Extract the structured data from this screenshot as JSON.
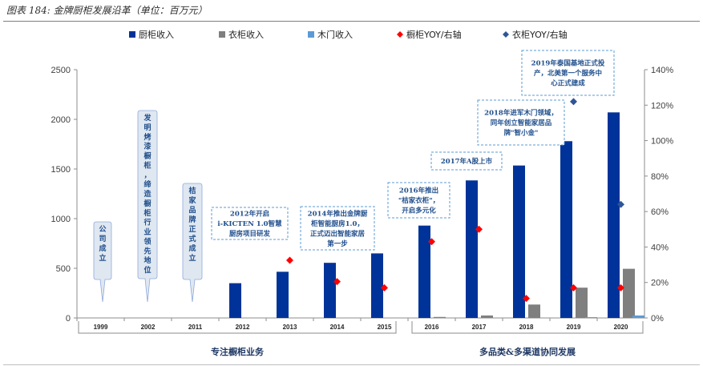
{
  "caption": "图表 184:  金牌厨柜发展沿革（单位：百万元）",
  "chart_data": {
    "type": "bar",
    "categories": [
      "1999",
      "2002",
      "2011",
      "2012",
      "2013",
      "2014",
      "2015",
      "2016",
      "2017",
      "2018",
      "2019",
      "2020"
    ],
    "series": [
      {
        "name": "厨柜收入",
        "kind": "bar",
        "color": "#003399",
        "values": [
          null,
          null,
          null,
          350,
          465,
          555,
          650,
          930,
          1385,
          1535,
          1780,
          2070
        ]
      },
      {
        "name": "衣柜收入",
        "kind": "bar",
        "color": "#7f7f7f",
        "values": [
          null,
          null,
          null,
          null,
          null,
          null,
          null,
          10,
          25,
          135,
          305,
          495
        ]
      },
      {
        "name": "木门收入",
        "kind": "bar",
        "color": "#5b9bd5",
        "values": [
          null,
          null,
          null,
          null,
          null,
          null,
          null,
          null,
          null,
          null,
          8,
          25
        ]
      },
      {
        "name": "橱柜YOY/右轴",
        "kind": "marker",
        "marker": "diamond",
        "color": "#ff0000",
        "values": [
          null,
          null,
          null,
          null,
          32.5,
          20.5,
          17,
          43,
          50,
          11,
          17,
          17
        ]
      },
      {
        "name": "衣柜YOY/右轴",
        "kind": "marker",
        "marker": "diamond",
        "color": "#2f5597",
        "values": [
          null,
          null,
          null,
          null,
          null,
          null,
          null,
          null,
          null,
          null,
          122,
          64
        ]
      }
    ],
    "y_left": {
      "min": 0,
      "max": 2500,
      "ticks": [
        "0",
        "500",
        "1000",
        "1500",
        "2000",
        "2500"
      ]
    },
    "y_right": {
      "min": 0,
      "max": 140,
      "ticks": [
        "0%",
        "20%",
        "40%",
        "60%",
        "80%",
        "100%",
        "120%",
        "140%"
      ]
    },
    "legend_position": "top",
    "phases": [
      "专注橱柜业务",
      "多品类&多渠道协同发展"
    ],
    "annotations": {
      "vertical": [
        "公司成立",
        "发明烤漆橱柜，缔造橱柜行业领先地位",
        "桔家品牌正式成立"
      ],
      "boxes": [
        [
          "2012年开启",
          "i-KICTEN 1.0智慧",
          "厨房项目研发"
        ],
        [
          "2014年推出金牌厨",
          "柜智能厨房1.0，",
          "正式迈出智能家居",
          "第一步"
        ],
        [
          "2016年推出",
          "\"桔家衣柜\"，",
          "开启多元化"
        ],
        [
          "2017年A股上市"
        ],
        [
          "2018年进军木门领域，",
          "同年创立智能家居品",
          "牌\"智小金\""
        ],
        [
          "2019年泰国基地正式投",
          "产，北美第一个服务中",
          "心正式建成"
        ]
      ]
    }
  }
}
